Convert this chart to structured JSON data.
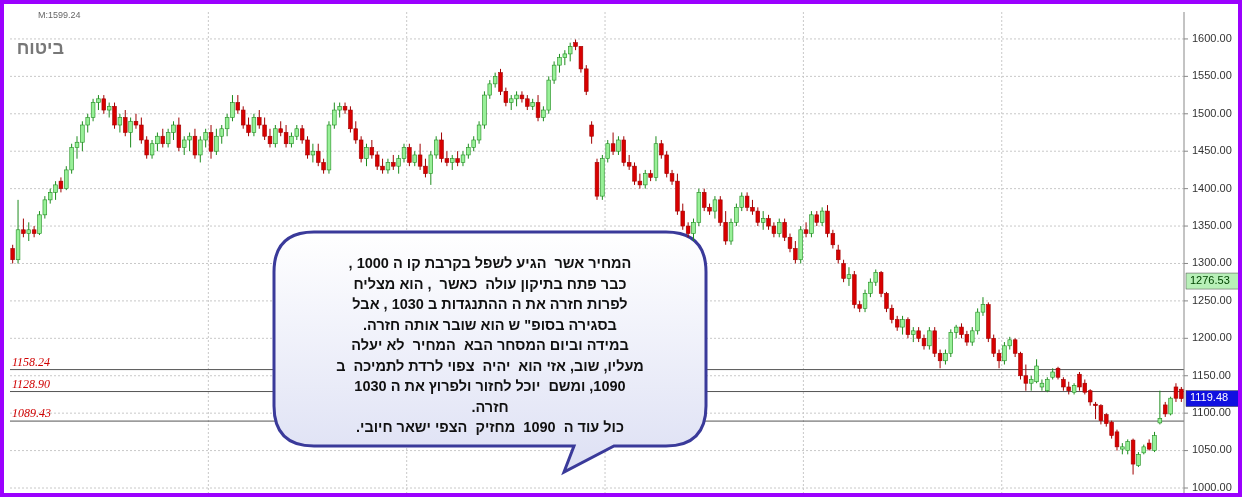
{
  "chart_data": {
    "type": "candlestick",
    "title": "ביטוח",
    "categories": [
      null,
      null,
      null,
      null,
      null,
      null,
      null,
      null,
      null,
      null,
      null,
      null,
      null,
      null,
      null,
      null,
      null,
      null,
      null,
      null,
      null,
      null,
      null,
      null,
      null,
      null,
      null,
      null,
      null,
      null,
      null,
      null,
      null,
      null,
      null,
      null,
      null,
      null,
      null,
      null,
      null,
      null,
      null,
      null,
      null,
      null,
      null,
      null,
      null,
      null,
      null,
      null,
      null,
      null,
      null,
      null,
      null,
      null,
      null,
      null,
      null,
      null,
      null,
      null,
      null,
      null,
      null,
      null,
      null,
      null,
      null,
      null,
      null,
      null,
      null,
      null,
      null,
      null,
      null,
      null,
      null,
      null,
      null,
      null,
      null,
      null,
      null,
      null,
      null,
      null,
      null,
      null,
      null,
      null,
      null,
      null,
      null,
      null,
      null,
      null,
      null,
      null,
      null,
      null,
      null,
      null,
      null,
      null,
      null,
      null,
      null,
      null,
      null,
      null,
      null,
      null,
      null,
      null,
      null,
      null,
      null,
      null,
      null,
      null,
      null,
      null,
      null,
      null,
      null,
      null,
      null,
      null,
      null,
      null,
      null,
      null,
      null,
      null,
      null,
      null,
      null,
      null,
      null,
      null,
      null,
      null,
      null,
      null,
      null,
      null,
      null,
      null,
      null,
      null,
      null,
      null,
      null,
      null,
      null,
      null,
      null,
      null,
      null,
      null,
      null,
      null,
      null,
      null,
      null,
      null,
      null,
      null,
      null,
      null,
      null,
      null,
      null,
      null,
      null,
      null,
      null,
      null,
      null,
      null,
      null,
      null,
      null,
      null,
      null,
      null,
      null,
      null,
      null,
      null,
      null,
      null,
      null,
      null,
      null,
      null,
      null,
      null,
      null,
      null,
      null,
      null,
      null,
      null,
      null,
      null,
      null,
      null,
      null,
      null,
      null,
      null,
      null,
      null,
      null
    ],
    "ohlc": [
      [
        1320,
        1325,
        1300,
        1305
      ],
      [
        1305,
        1385,
        1300,
        1345
      ],
      [
        1345,
        1360,
        1335,
        1340
      ],
      [
        1340,
        1355,
        1330,
        1345
      ],
      [
        1345,
        1350,
        1335,
        1340
      ],
      [
        1340,
        1370,
        1338,
        1365
      ],
      [
        1365,
        1390,
        1360,
        1385
      ],
      [
        1385,
        1400,
        1380,
        1395
      ],
      [
        1395,
        1410,
        1385,
        1405
      ],
      [
        1410,
        1415,
        1395,
        1400
      ],
      [
        1400,
        1430,
        1398,
        1425
      ],
      [
        1425,
        1460,
        1420,
        1455
      ],
      [
        1455,
        1470,
        1440,
        1462
      ],
      [
        1462,
        1490,
        1450,
        1485
      ],
      [
        1485,
        1500,
        1475,
        1495
      ],
      [
        1495,
        1520,
        1490,
        1515
      ],
      [
        1515,
        1525,
        1505,
        1520
      ],
      [
        1520,
        1525,
        1500,
        1505
      ],
      [
        1505,
        1515,
        1495,
        1510
      ],
      [
        1510,
        1515,
        1480,
        1485
      ],
      [
        1485,
        1500,
        1475,
        1495
      ],
      [
        1495,
        1505,
        1470,
        1475
      ],
      [
        1475,
        1495,
        1455,
        1490
      ],
      [
        1490,
        1500,
        1480,
        1485
      ],
      [
        1485,
        1495,
        1460,
        1465
      ],
      [
        1465,
        1470,
        1440,
        1445
      ],
      [
        1445,
        1465,
        1440,
        1460
      ],
      [
        1460,
        1475,
        1450,
        1470
      ],
      [
        1470,
        1480,
        1455,
        1460
      ],
      [
        1460,
        1480,
        1455,
        1475
      ],
      [
        1475,
        1490,
        1465,
        1485
      ],
      [
        1485,
        1495,
        1450,
        1455
      ],
      [
        1455,
        1470,
        1445,
        1465
      ],
      [
        1465,
        1475,
        1450,
        1470
      ],
      [
        1470,
        1480,
        1440,
        1445
      ],
      [
        1445,
        1470,
        1435,
        1465
      ],
      [
        1465,
        1480,
        1455,
        1475
      ],
      [
        1475,
        1485,
        1440,
        1450
      ],
      [
        1450,
        1480,
        1445,
        1470
      ],
      [
        1470,
        1485,
        1460,
        1480
      ],
      [
        1480,
        1500,
        1470,
        1495
      ],
      [
        1495,
        1525,
        1490,
        1515
      ],
      [
        1515,
        1525,
        1500,
        1505
      ],
      [
        1505,
        1510,
        1480,
        1485
      ],
      [
        1485,
        1495,
        1470,
        1475
      ],
      [
        1475,
        1500,
        1470,
        1495
      ],
      [
        1495,
        1505,
        1480,
        1485
      ],
      [
        1485,
        1495,
        1465,
        1470
      ],
      [
        1470,
        1480,
        1455,
        1460
      ],
      [
        1460,
        1485,
        1455,
        1480
      ],
      [
        1480,
        1490,
        1470,
        1475
      ],
      [
        1475,
        1485,
        1455,
        1460
      ],
      [
        1460,
        1475,
        1455,
        1470
      ],
      [
        1470,
        1485,
        1465,
        1480
      ],
      [
        1480,
        1485,
        1460,
        1465
      ],
      [
        1465,
        1470,
        1440,
        1445
      ],
      [
        1445,
        1460,
        1435,
        1450
      ],
      [
        1450,
        1460,
        1430,
        1435
      ],
      [
        1435,
        1440,
        1420,
        1425
      ],
      [
        1425,
        1490,
        1420,
        1485
      ],
      [
        1485,
        1515,
        1480,
        1505
      ],
      [
        1505,
        1515,
        1495,
        1510
      ],
      [
        1510,
        1515,
        1500,
        1505
      ],
      [
        1505,
        1510,
        1475,
        1480
      ],
      [
        1480,
        1490,
        1460,
        1465
      ],
      [
        1465,
        1470,
        1435,
        1440
      ],
      [
        1440,
        1460,
        1430,
        1455
      ],
      [
        1455,
        1465,
        1440,
        1445
      ],
      [
        1445,
        1450,
        1425,
        1430
      ],
      [
        1430,
        1440,
        1420,
        1425
      ],
      [
        1425,
        1440,
        1420,
        1435
      ],
      [
        1435,
        1445,
        1425,
        1430
      ],
      [
        1430,
        1445,
        1420,
        1440
      ],
      [
        1440,
        1460,
        1435,
        1455
      ],
      [
        1455,
        1460,
        1430,
        1435
      ],
      [
        1435,
        1450,
        1430,
        1445
      ],
      [
        1445,
        1460,
        1425,
        1430
      ],
      [
        1430,
        1440,
        1415,
        1420
      ],
      [
        1420,
        1450,
        1405,
        1445
      ],
      [
        1445,
        1470,
        1440,
        1465
      ],
      [
        1465,
        1475,
        1435,
        1440
      ],
      [
        1440,
        1450,
        1430,
        1435
      ],
      [
        1435,
        1445,
        1425,
        1440
      ],
      [
        1440,
        1450,
        1430,
        1435
      ],
      [
        1435,
        1450,
        1430,
        1445
      ],
      [
        1445,
        1460,
        1440,
        1455
      ],
      [
        1455,
        1470,
        1450,
        1465
      ],
      [
        1465,
        1490,
        1460,
        1485
      ],
      [
        1485,
        1530,
        1480,
        1525
      ],
      [
        1525,
        1545,
        1520,
        1540
      ],
      [
        1540,
        1555,
        1535,
        1550
      ],
      [
        1555,
        1560,
        1525,
        1530
      ],
      [
        1530,
        1535,
        1510,
        1515
      ],
      [
        1515,
        1525,
        1505,
        1520
      ],
      [
        1520,
        1530,
        1510,
        1525
      ],
      [
        1525,
        1530,
        1515,
        1520
      ],
      [
        1520,
        1525,
        1505,
        1510
      ],
      [
        1510,
        1520,
        1505,
        1515
      ],
      [
        1515,
        1525,
        1490,
        1495
      ],
      [
        1495,
        1510,
        1490,
        1505
      ],
      [
        1505,
        1550,
        1500,
        1545
      ],
      [
        1545,
        1570,
        1540,
        1565
      ],
      [
        1565,
        1580,
        1555,
        1575
      ],
      [
        1575,
        1585,
        1565,
        1580
      ],
      [
        1580,
        1595,
        1570,
        1590
      ],
      [
        1595,
        1599.24,
        1585,
        1590
      ],
      [
        1590,
        1590,
        1555,
        1560
      ],
      [
        1560,
        1565,
        1525,
        1530
      ],
      [
        1485,
        1490,
        1460,
        1470
      ],
      [
        1435,
        1440,
        1385,
        1390
      ],
      [
        1390,
        1445,
        1385,
        1440
      ],
      [
        1440,
        1465,
        1435,
        1460
      ],
      [
        1460,
        1475,
        1445,
        1450
      ],
      [
        1450,
        1470,
        1445,
        1465
      ],
      [
        1465,
        1470,
        1430,
        1435
      ],
      [
        1435,
        1445,
        1425,
        1430
      ],
      [
        1430,
        1435,
        1405,
        1410
      ],
      [
        1410,
        1420,
        1400,
        1405
      ],
      [
        1405,
        1425,
        1400,
        1420
      ],
      [
        1420,
        1425,
        1410,
        1415
      ],
      [
        1415,
        1470,
        1410,
        1460
      ],
      [
        1460,
        1465,
        1440,
        1445
      ],
      [
        1445,
        1450,
        1415,
        1420
      ],
      [
        1420,
        1425,
        1405,
        1410
      ],
      [
        1410,
        1420,
        1365,
        1370
      ],
      [
        1370,
        1380,
        1345,
        1350
      ],
      [
        1350,
        1355,
        1335,
        1340
      ],
      [
        1340,
        1360,
        1330,
        1355
      ],
      [
        1355,
        1400,
        1350,
        1395
      ],
      [
        1395,
        1400,
        1370,
        1375
      ],
      [
        1375,
        1380,
        1365,
        1370
      ],
      [
        1370,
        1390,
        1360,
        1385
      ],
      [
        1385,
        1390,
        1350,
        1355
      ],
      [
        1355,
        1370,
        1325,
        1330
      ],
      [
        1330,
        1360,
        1325,
        1355
      ],
      [
        1355,
        1380,
        1350,
        1375
      ],
      [
        1375,
        1395,
        1370,
        1390
      ],
      [
        1390,
        1395,
        1370,
        1375
      ],
      [
        1375,
        1385,
        1365,
        1370
      ],
      [
        1370,
        1375,
        1350,
        1355
      ],
      [
        1355,
        1370,
        1345,
        1360
      ],
      [
        1360,
        1365,
        1345,
        1350
      ],
      [
        1350,
        1355,
        1335,
        1340
      ],
      [
        1340,
        1360,
        1335,
        1355
      ],
      [
        1355,
        1360,
        1330,
        1335
      ],
      [
        1335,
        1340,
        1315,
        1320
      ],
      [
        1320,
        1330,
        1300,
        1305
      ],
      [
        1305,
        1350,
        1300,
        1345
      ],
      [
        1345,
        1355,
        1335,
        1340
      ],
      [
        1340,
        1370,
        1335,
        1365
      ],
      [
        1365,
        1370,
        1350,
        1355
      ],
      [
        1355,
        1375,
        1350,
        1370
      ],
      [
        1370,
        1378,
        1335,
        1340
      ],
      [
        1340,
        1345,
        1320,
        1325
      ],
      [
        1318,
        1325,
        1300,
        1305
      ],
      [
        1300,
        1305,
        1275,
        1280
      ],
      [
        1280,
        1295,
        1270,
        1285
      ],
      [
        1285,
        1290,
        1240,
        1245
      ],
      [
        1245,
        1250,
        1235,
        1240
      ],
      [
        1240,
        1265,
        1235,
        1260
      ],
      [
        1260,
        1280,
        1255,
        1275
      ],
      [
        1275,
        1292,
        1270,
        1288
      ],
      [
        1288,
        1290,
        1255,
        1260
      ],
      [
        1260,
        1262,
        1235,
        1240
      ],
      [
        1240,
        1245,
        1220,
        1225
      ],
      [
        1225,
        1230,
        1210,
        1215
      ],
      [
        1215,
        1230,
        1205,
        1225
      ],
      [
        1225,
        1228,
        1200,
        1205
      ],
      [
        1205,
        1215,
        1195,
        1210
      ],
      [
        1210,
        1215,
        1195,
        1200
      ],
      [
        1200,
        1205,
        1185,
        1190
      ],
      [
        1190,
        1215,
        1185,
        1210
      ],
      [
        1210,
        1215,
        1175,
        1180
      ],
      [
        1180,
        1185,
        1160,
        1170
      ],
      [
        1170,
        1185,
        1165,
        1180
      ],
      [
        1180,
        1212,
        1175,
        1208
      ],
      [
        1208,
        1218,
        1200,
        1215
      ],
      [
        1215,
        1220,
        1200,
        1205
      ],
      [
        1205,
        1210,
        1190,
        1195
      ],
      [
        1195,
        1215,
        1190,
        1210
      ],
      [
        1210,
        1240,
        1205,
        1235
      ],
      [
        1235,
        1255,
        1230,
        1245
      ],
      [
        1245,
        1248,
        1195,
        1200
      ],
      [
        1200,
        1205,
        1175,
        1180
      ],
      [
        1180,
        1185,
        1160,
        1170
      ],
      [
        1170,
        1195,
        1165,
        1190
      ],
      [
        1190,
        1202,
        1185,
        1198
      ],
      [
        1198,
        1200,
        1175,
        1180
      ],
      [
        1180,
        1182,
        1145,
        1150
      ],
      [
        1150,
        1165,
        1130,
        1140
      ],
      [
        1140,
        1150,
        1130,
        1145
      ],
      [
        1142,
        1172,
        1140,
        1163
      ],
      [
        1135,
        1145,
        1130,
        1140
      ],
      [
        1130,
        1148,
        1128,
        1145
      ],
      [
        1148,
        1160,
        1145,
        1155
      ],
      [
        1160,
        1162,
        1145,
        1148
      ],
      [
        1145,
        1148,
        1130,
        1135
      ],
      [
        1135,
        1142,
        1125,
        1130
      ],
      [
        1128,
        1140,
        1125,
        1137
      ],
      [
        1152,
        1155,
        1130,
        1135
      ],
      [
        1140,
        1145,
        1125,
        1128
      ],
      [
        1130,
        1132,
        1110,
        1115
      ],
      [
        1112,
        1115,
        1092,
        1110
      ],
      [
        1110,
        1112,
        1085,
        1090
      ],
      [
        1098,
        1100,
        1082,
        1086
      ],
      [
        1088,
        1090,
        1066,
        1070
      ],
      [
        1075,
        1078,
        1050,
        1055
      ],
      [
        1052,
        1060,
        1045,
        1055
      ],
      [
        1050,
        1065,
        1045,
        1062
      ],
      [
        1064,
        1066,
        1018,
        1032
      ],
      [
        1030,
        1048,
        1028,
        1045
      ],
      [
        1047,
        1058,
        1045,
        1055
      ],
      [
        1060,
        1065,
        1050,
        1052
      ],
      [
        1050,
        1075,
        1048,
        1070
      ],
      [
        1087,
        1130,
        1085,
        1093
      ],
      [
        1111,
        1115,
        1095,
        1099
      ],
      [
        1099,
        1122,
        1097,
        1120
      ],
      [
        1135,
        1140,
        1115,
        1120
      ],
      [
        1132,
        1135,
        1115,
        1119.48
      ]
    ],
    "ylim": [
      992,
      1636
    ],
    "yticks": [
      {
        "value": 1000,
        "label": "1000.00"
      },
      {
        "value": 1050,
        "label": "1050.00"
      },
      {
        "value": 1100,
        "label": "1100.00"
      },
      {
        "value": 1150,
        "label": "1150.00"
      },
      {
        "value": 1200,
        "label": "1200.00"
      },
      {
        "value": 1250,
        "label": "1250.00"
      },
      {
        "value": 1300,
        "label": "1300.00"
      },
      {
        "value": 1350,
        "label": "1350.00"
      },
      {
        "value": 1400,
        "label": "1400.00"
      },
      {
        "value": 1450,
        "label": "1450.00"
      },
      {
        "value": 1500,
        "label": "1500.00"
      },
      {
        "value": 1550,
        "label": "1550.00"
      },
      {
        "value": 1600,
        "label": "1600.00"
      }
    ],
    "grid": true,
    "ref_lines": [
      {
        "axis": "y",
        "value": 1158.24,
        "label": "1158.24",
        "color": "#555555"
      },
      {
        "axis": "y",
        "value": 1128.9,
        "label": "1128.90",
        "color": "#555555"
      },
      {
        "axis": "y",
        "value": 1089.43,
        "label": "1089.43",
        "color": "#555555"
      }
    ],
    "annotations": [
      "M:1599.24",
      "1276.53",
      "1119.48",
      "המחיר אשר  הגיע לשפל בקרבת קו ה 1000 ,\nכבר פתח בתיקון עולה  כאשר  , הוא מצליח\nלפרות חזרה את ה ההתנגדות ב 1030 , אבל\nבסגירה בסופ\" ש הוא שובר אותה חזרה.\nבמידה וביום המסחר הבא  המחיר  לא יעלה\nמעליו, שוב, אזי הוא  יהיה  צפוי לרדת לתמיכה  ב\n1090, ומשם  יוכל לחזור ולפרוץ את ה 1030\nחזרה.\nכול עוד ה  1090  מחזיק  הצפי ישאר חיובי."
    ]
  }
}
